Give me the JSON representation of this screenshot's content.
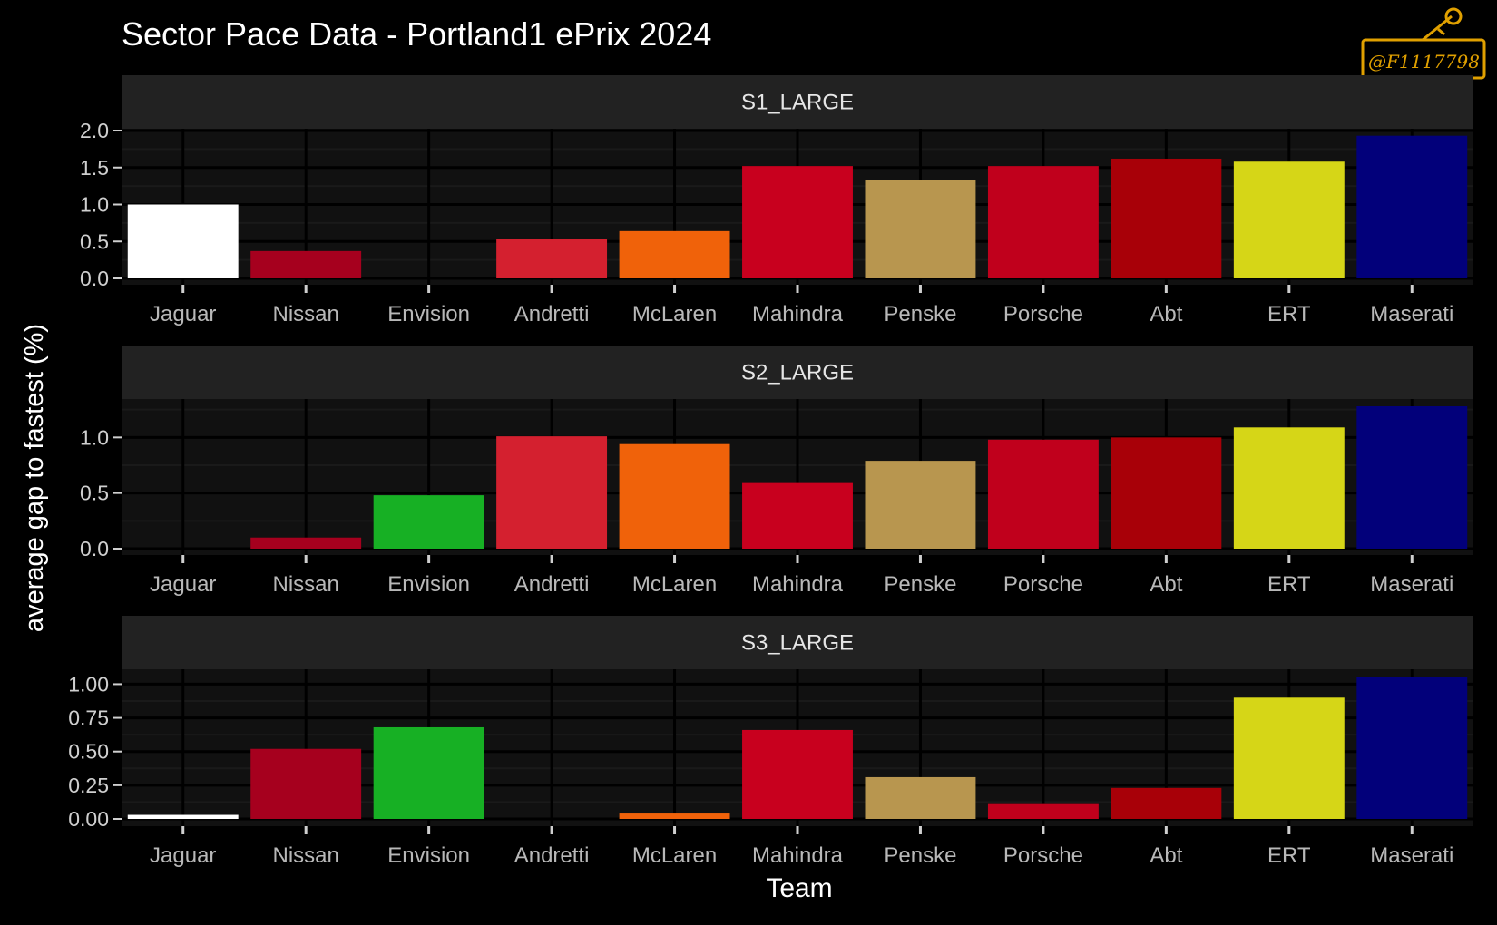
{
  "title": "Sector Pace Data - Portland1 ePrix 2024",
  "xlabel": "Team",
  "ylabel": "average gap to fastest (%)",
  "logo_text": "@F1117798",
  "colors": {
    "background": "#000000",
    "panel": "#111111",
    "strip": "#222222",
    "grid_major": "#000000",
    "grid_minor": "#1a1a1a"
  },
  "team_colors": {
    "Jaguar": "#ffffff",
    "Nissan": "#a6001e",
    "Envision": "#17b024",
    "Andretti": "#d4202f",
    "McLaren": "#f0620a",
    "Mahindra": "#c8001e",
    "Penske": "#b8964f",
    "Porsche": "#c0001c",
    "Abt": "#a80008",
    "ERT": "#d6d617",
    "Maserati": "#02007a"
  },
  "chart_data": [
    {
      "type": "bar",
      "title": "S1_LARGE",
      "categories": [
        "Jaguar",
        "Nissan",
        "Envision",
        "Andretti",
        "McLaren",
        "Mahindra",
        "Penske",
        "Porsche",
        "Abt",
        "ERT",
        "Maserati"
      ],
      "values": [
        1.0,
        0.37,
        0.0,
        0.53,
        0.64,
        1.52,
        1.33,
        1.52,
        1.62,
        1.58,
        1.93
      ],
      "yticks": [
        "0.0",
        "0.5",
        "1.0",
        "1.5",
        "2.0"
      ],
      "ylim": [
        0,
        2.0
      ],
      "grid": true
    },
    {
      "type": "bar",
      "title": "S2_LARGE",
      "categories": [
        "Jaguar",
        "Nissan",
        "Envision",
        "Andretti",
        "McLaren",
        "Mahindra",
        "Penske",
        "Porsche",
        "Abt",
        "ERT",
        "Maserati"
      ],
      "values": [
        0.0,
        0.1,
        0.48,
        1.01,
        0.94,
        0.59,
        0.79,
        0.98,
        1.0,
        1.09,
        1.28
      ],
      "yticks": [
        "0.0",
        "0.5",
        "1.0"
      ],
      "ylim": [
        0,
        1.28
      ],
      "grid": true
    },
    {
      "type": "bar",
      "title": "S3_LARGE",
      "categories": [
        "Jaguar",
        "Nissan",
        "Envision",
        "Andretti",
        "McLaren",
        "Mahindra",
        "Penske",
        "Porsche",
        "Abt",
        "ERT",
        "Maserati"
      ],
      "values": [
        0.03,
        0.52,
        0.68,
        0.0,
        0.04,
        0.66,
        0.31,
        0.11,
        0.23,
        0.9,
        1.05
      ],
      "yticks": [
        "0.00",
        "0.25",
        "0.50",
        "0.75",
        "1.00"
      ],
      "ylim": [
        0,
        1.05
      ],
      "grid": true
    }
  ]
}
